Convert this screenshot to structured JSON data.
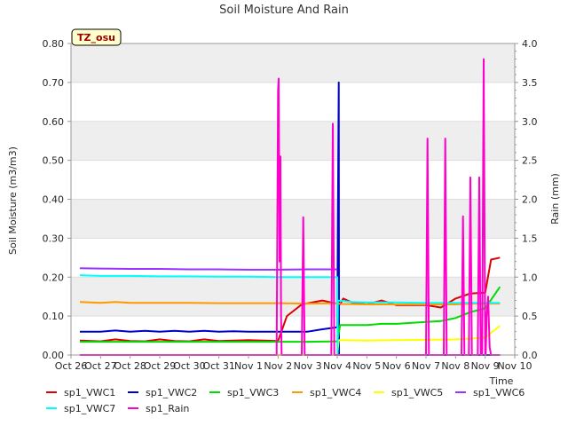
{
  "colors": {
    "band": "#eeeeee",
    "axis": "#999999",
    "grid": "#dddddd",
    "annotation_bg": "#ffffcc",
    "annotation_fg": "#990000"
  },
  "chart_data": {
    "type": "line",
    "title": "Soil Moisture And Rain",
    "annotation": "TZ_osu",
    "xlabel": "Time",
    "ylabel": "Soil Moisture (m3/m3)",
    "y2label": "Rain (mm)",
    "xlim": [
      0,
      15
    ],
    "ylim": [
      0,
      0.8
    ],
    "y2lim": [
      0,
      4.0
    ],
    "x_ticks": [
      0,
      1,
      2,
      3,
      4,
      5,
      6,
      7,
      8,
      9,
      10,
      11,
      12,
      13,
      14,
      15
    ],
    "x_tick_labels": [
      "Oct 26",
      "Oct 27",
      "Oct 28",
      "Oct 29",
      "Oct 30",
      "Oct 31",
      "Nov 1",
      "Nov 2",
      "Nov 3",
      "Nov 4",
      "Nov 5",
      "Nov 6",
      "Nov 7",
      "Nov 8",
      "Nov 9",
      "Nov 10"
    ],
    "y_ticks": [
      0,
      0.1,
      0.2,
      0.3,
      0.4,
      0.5,
      0.6,
      0.7,
      0.8
    ],
    "y_tick_labels": [
      "0.00",
      "0.10",
      "0.20",
      "0.30",
      "0.40",
      "0.50",
      "0.60",
      "0.70",
      "0.80"
    ],
    "y2_ticks": [
      0,
      0.5,
      1.0,
      1.5,
      2.0,
      2.5,
      3.0,
      3.5,
      4.0
    ],
    "y2_tick_labels": [
      "0.0",
      "0.5",
      "1.0",
      "1.5",
      "2.0",
      "2.5",
      "3.0",
      "3.5",
      "4.0"
    ],
    "series": [
      {
        "name": "sp1_VWC1",
        "color": "#dd0000",
        "axis": "left",
        "x": [
          0.3,
          1.0,
          1.5,
          2.0,
          2.5,
          3.0,
          3.5,
          4.0,
          4.5,
          5.0,
          5.5,
          6.0,
          6.5,
          7.0,
          7.3,
          7.8,
          8.5,
          8.8,
          9.0,
          9.1,
          9.2,
          9.5,
          10.0,
          10.5,
          11.0,
          12.0,
          12.5,
          13.0,
          13.5,
          14.0,
          14.2,
          14.5
        ],
        "y": [
          0.037,
          0.035,
          0.04,
          0.036,
          0.035,
          0.04,
          0.036,
          0.035,
          0.04,
          0.036,
          0.037,
          0.038,
          0.037,
          0.036,
          0.1,
          0.13,
          0.14,
          0.135,
          0.132,
          0.13,
          0.145,
          0.135,
          0.13,
          0.14,
          0.128,
          0.128,
          0.122,
          0.145,
          0.158,
          0.16,
          0.245,
          0.25
        ]
      },
      {
        "name": "sp1_VWC2",
        "color": "#0000cc",
        "axis": "left",
        "x": [
          0.3,
          1.0,
          1.5,
          2.0,
          2.5,
          3.0,
          3.5,
          4.0,
          4.5,
          5.0,
          5.5,
          6.0,
          6.5,
          7.0,
          7.5,
          8.0,
          8.5,
          9.0,
          9.05,
          9.06,
          14.5
        ],
        "y": [
          0.06,
          0.06,
          0.063,
          0.06,
          0.062,
          0.06,
          0.062,
          0.06,
          0.062,
          0.06,
          0.061,
          0.06,
          0.06,
          0.06,
          0.06,
          0.06,
          0.066,
          0.071,
          0.7,
          0,
          0
        ]
      },
      {
        "name": "sp1_VWC3",
        "color": "#00dd00",
        "axis": "left",
        "x": [
          0.3,
          1.0,
          2.0,
          3.0,
          4.0,
          5.0,
          6.0,
          7.0,
          8.0,
          9.0,
          9.1,
          10.0,
          10.5,
          11.0,
          12.0,
          12.5,
          13.0,
          13.5,
          14.0,
          14.5
        ],
        "y": [
          0.034,
          0.034,
          0.034,
          0.034,
          0.034,
          0.034,
          0.034,
          0.034,
          0.034,
          0.035,
          0.077,
          0.077,
          0.08,
          0.08,
          0.085,
          0.087,
          0.095,
          0.11,
          0.12,
          0.175
        ]
      },
      {
        "name": "sp1_VWC4",
        "color": "#ff9900",
        "axis": "left",
        "x": [
          0.3,
          1.0,
          1.5,
          2.0,
          3.0,
          4.0,
          5.0,
          6.0,
          7.0,
          8.0,
          9.0,
          9.1,
          10.0,
          11.0,
          12.0,
          13.0,
          13.5,
          14.5
        ],
        "y": [
          0.136,
          0.134,
          0.136,
          0.134,
          0.134,
          0.134,
          0.133,
          0.133,
          0.133,
          0.132,
          0.133,
          0.131,
          0.13,
          0.13,
          0.13,
          0.13,
          0.132,
          0.132
        ]
      },
      {
        "name": "sp1_VWC5",
        "color": "#ffff00",
        "axis": "left",
        "x": [
          0.3,
          1.0,
          2.0,
          3.0,
          4.0,
          5.0,
          6.0,
          7.0,
          8.0,
          9.0,
          9.05,
          10.0,
          11.0,
          12.0,
          13.0,
          13.5,
          14.0,
          14.5
        ],
        "y": [
          0.0,
          0.0,
          0.0,
          0.0,
          0.0,
          0.0,
          0.0,
          0.0,
          0.0,
          0.0,
          0.038,
          0.037,
          0.038,
          0.039,
          0.04,
          0.042,
          0.045,
          0.075
        ]
      },
      {
        "name": "sp1_VWC6",
        "color": "#9933ff",
        "axis": "left",
        "x": [
          0.3,
          1.0,
          2.0,
          3.0,
          4.0,
          5.0,
          6.0,
          7.0,
          8.0,
          9.0
        ],
        "y": [
          0.223,
          0.222,
          0.221,
          0.221,
          0.22,
          0.22,
          0.219,
          0.219,
          0.22,
          0.22
        ]
      },
      {
        "name": "sp1_VWC7",
        "color": "#00ffff",
        "axis": "left",
        "x": [
          0.3,
          1.0,
          2.0,
          3.0,
          4.0,
          5.0,
          6.0,
          7.0,
          8.0,
          9.0,
          9.01,
          9.02,
          9.5,
          10.0,
          11.0,
          12.0,
          13.0,
          14.0,
          14.5
        ],
        "y": [
          0.205,
          0.203,
          0.203,
          0.202,
          0.202,
          0.201,
          0.201,
          0.2,
          0.2,
          0.2,
          0.0,
          0.14,
          0.136,
          0.135,
          0.135,
          0.134,
          0.134,
          0.134,
          0.134
        ]
      },
      {
        "name": "sp1_Rain",
        "color": "#ff00cc",
        "axis": "right",
        "x": [
          0.3,
          6.95,
          7.0,
          7.02,
          7.05,
          7.08,
          7.1,
          7.12,
          7.2,
          7.21,
          7.3,
          7.8,
          7.85,
          7.9,
          8.8,
          8.85,
          8.9,
          9.0,
          12.0,
          12.05,
          12.1,
          12.6,
          12.65,
          12.7,
          13.2,
          13.25,
          13.3,
          13.45,
          13.5,
          13.55,
          13.75,
          13.8,
          13.85,
          13.9,
          13.95,
          14.0,
          14.02,
          14.05,
          14.1,
          14.15,
          14.2,
          14.25,
          14.3,
          14.5
        ],
        "y": [
          0,
          0,
          3.4,
          3.55,
          1.2,
          2.55,
          0.5,
          0,
          0,
          0,
          0,
          0,
          1.77,
          0,
          0,
          2.97,
          0,
          0,
          0,
          2.78,
          0,
          0,
          2.78,
          0,
          0,
          1.78,
          0,
          0,
          2.28,
          0,
          0,
          2.28,
          0,
          0,
          3.8,
          0,
          0,
          0.5,
          0.75,
          0.1,
          0,
          0,
          0,
          0
        ]
      }
    ]
  }
}
